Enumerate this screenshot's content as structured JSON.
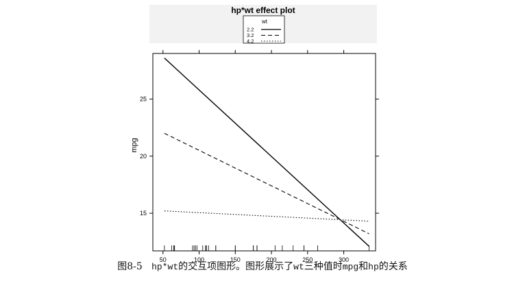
{
  "chart_data": {
    "type": "line",
    "title": "hp*wt effect plot",
    "xlabel": "",
    "ylabel": "mpg",
    "xlim": [
      36,
      344
    ],
    "ylim": [
      11.7,
      29.0
    ],
    "x_ticks": [
      50,
      100,
      150,
      200,
      250,
      300
    ],
    "x_tick_labels": [
      "50",
      "100",
      "150",
      "200",
      "250",
      "300"
    ],
    "y_ticks": [
      15,
      20,
      25
    ],
    "y_tick_labels": [
      "15",
      "20",
      "25"
    ],
    "legend": {
      "title": "wt",
      "placement": "top-center",
      "entries": [
        "2.2",
        "3.2",
        "4.2"
      ]
    },
    "series": [
      {
        "name": "2.2",
        "style": "solid",
        "x": [
          52,
          335
        ],
        "y": [
          28.6,
          12.1
        ]
      },
      {
        "name": "3.2",
        "style": "dashed",
        "x": [
          52,
          335
        ],
        "y": [
          22.0,
          13.2
        ]
      },
      {
        "name": "4.2",
        "style": "dotted",
        "x": [
          52,
          335
        ],
        "y": [
          15.2,
          14.3
        ]
      }
    ],
    "rug_x": [
      52,
      62,
      65,
      66,
      66,
      91,
      93,
      95,
      97,
      105,
      109,
      110,
      110,
      110,
      113,
      123,
      123,
      150,
      150,
      175,
      175,
      180,
      180,
      180,
      205,
      215,
      230,
      245,
      245,
      264,
      335
    ],
    "grid": false
  },
  "caption": {
    "label": "图8-5",
    "code_term": "hp*wt",
    "part1": "的交互项图形。图形展示了",
    "code_wt": "wt",
    "part2": "三种值时",
    "code_mpg": "mpg",
    "part3": "和",
    "code_hp": "hp",
    "part4": "的关系"
  },
  "colors": {
    "line": "#000000",
    "background": "#ffffff",
    "header_bg": "#f2f2f2"
  }
}
